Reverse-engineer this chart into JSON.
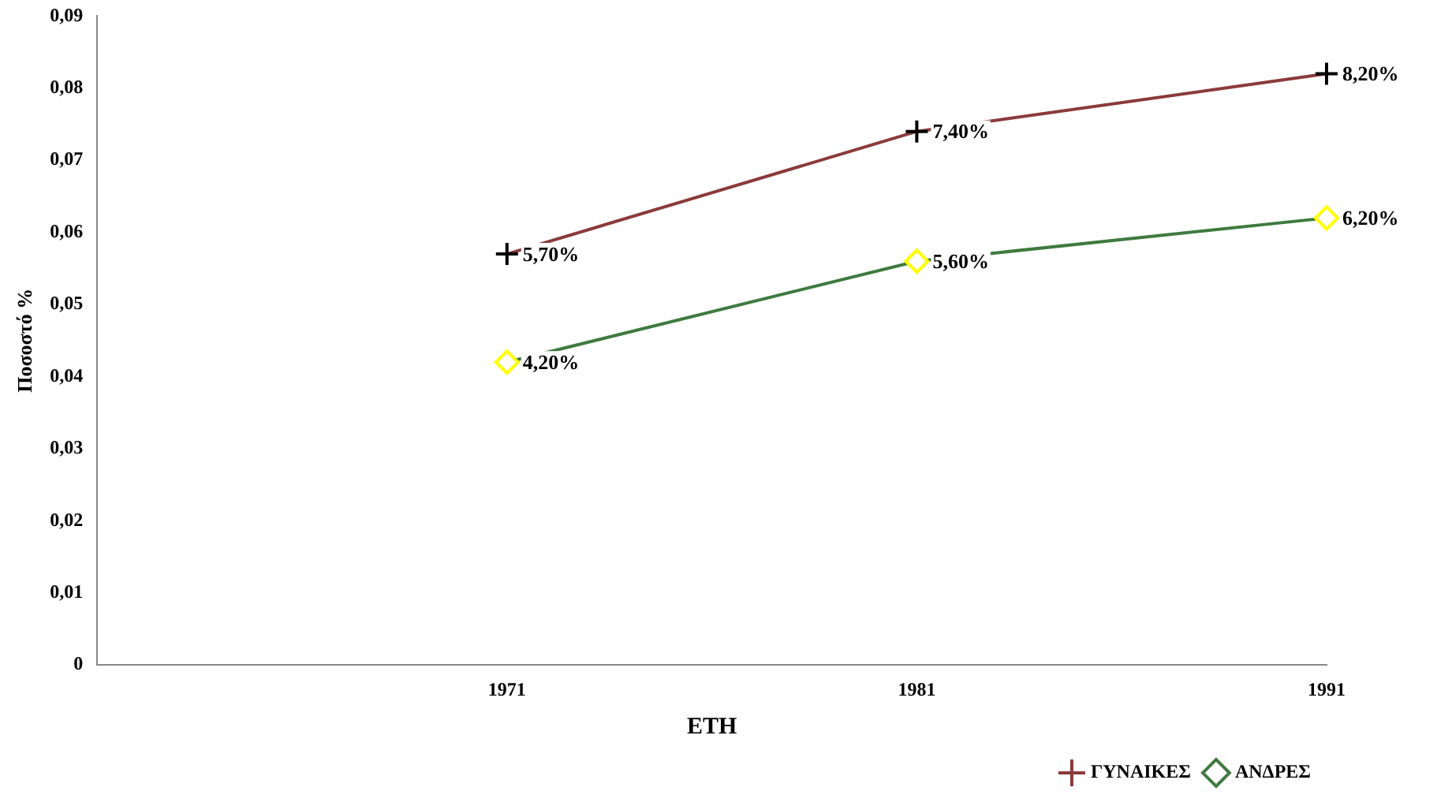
{
  "chart_data": {
    "type": "line",
    "xlabel": "ΕΤΗ",
    "ylabel": "Ποσοστό %",
    "categories": [
      null,
      "1971",
      "1981",
      "1991"
    ],
    "series": [
      {
        "name": "ΓΥΝΑΙΚΕΣ",
        "color": "#8b3a3a",
        "colors": [
          null,
          "#000000",
          "#000000",
          "#000000"
        ],
        "marker": "cross",
        "values": [
          null,
          0.057,
          0.074,
          0.082
        ],
        "value_labels": [
          null,
          "5,70%",
          "7,40%",
          "8,20%"
        ]
      },
      {
        "name": "ΑΝΔΡΕΣ",
        "color": "#3f7a3f",
        "colors": [
          null,
          "#ffff00",
          "#ffff00",
          "#ffff00"
        ],
        "marker": "diamond",
        "values": [
          null,
          0.042,
          0.056,
          0.062
        ],
        "value_labels": [
          null,
          "4,20%",
          "5,60%",
          "6,20%"
        ]
      }
    ],
    "ylim": [
      0,
      0.09
    ],
    "yticks": [
      {
        "value": 0,
        "label": "0"
      },
      {
        "value": 0.01,
        "label": "0,01"
      },
      {
        "value": 0.02,
        "label": "0,02"
      },
      {
        "value": 0.03,
        "label": "0,03"
      },
      {
        "value": 0.04,
        "label": "0,04"
      },
      {
        "value": 0.05,
        "label": "0,05"
      },
      {
        "value": 0.06,
        "label": "0,06"
      },
      {
        "value": 0.07,
        "label": "0,07"
      },
      {
        "value": 0.08,
        "label": "0,08"
      },
      {
        "value": 0.09,
        "label": "0,09"
      }
    ],
    "grid": false,
    "legend": "bottom right",
    "line_style": "solid"
  }
}
